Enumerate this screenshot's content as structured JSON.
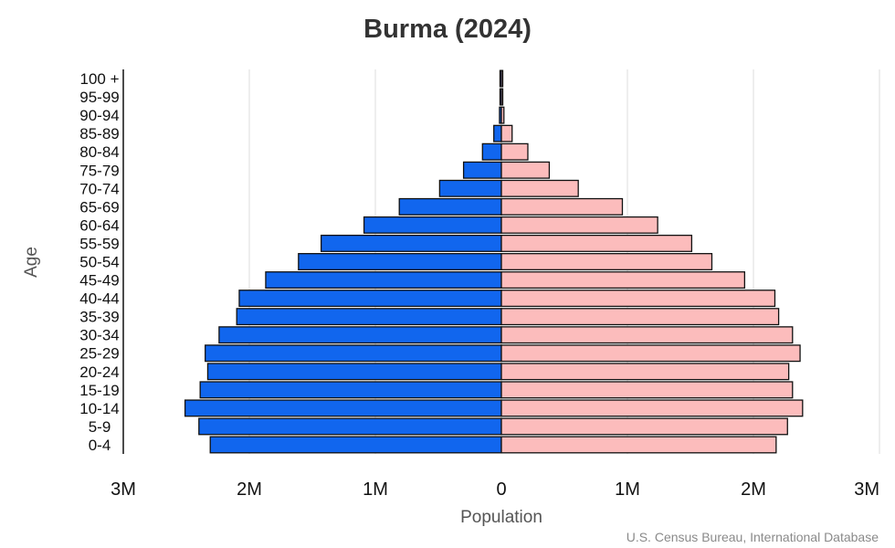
{
  "page": {
    "source": "U.S. Census Bureau, International Database"
  },
  "colors": {
    "male": "#1166ee",
    "female": "#fcbcbc",
    "grid": "#dddddd",
    "bar_outline": "#111111"
  },
  "chart_data": {
    "type": "bar",
    "orientation": "horizontal",
    "subtype": "population-pyramid",
    "title": "Burma (2024)",
    "xlabel": "Population",
    "ylabel": "Age",
    "xlim": [
      -3000000,
      3000000
    ],
    "x_ticks": [
      {
        "value": -3000000,
        "label": "3M"
      },
      {
        "value": -2000000,
        "label": "2M"
      },
      {
        "value": -1000000,
        "label": "1M"
      },
      {
        "value": 0,
        "label": "0"
      },
      {
        "value": 1000000,
        "label": "1M"
      },
      {
        "value": 2000000,
        "label": "2M"
      },
      {
        "value": 3000000,
        "label": "3M"
      }
    ],
    "grid": true,
    "legend": "none",
    "categories": [
      "0-4",
      "5-9",
      "10-14",
      "15-19",
      "20-24",
      "25-29",
      "30-34",
      "35-39",
      "40-44",
      "45-49",
      "50-54",
      "55-59",
      "60-64",
      "65-69",
      "70-74",
      "75-79",
      "80-84",
      "85-89",
      "90-94",
      "95-99",
      "100 +"
    ],
    "series": [
      {
        "side": "left",
        "color": "#1166ee",
        "values": [
          2310000,
          2400000,
          2510000,
          2390000,
          2330000,
          2350000,
          2240000,
          2100000,
          2080000,
          1870000,
          1610000,
          1430000,
          1090000,
          810000,
          490000,
          300000,
          150000,
          60000,
          15000,
          4000,
          1000
        ]
      },
      {
        "side": "right",
        "color": "#fcbcbc",
        "values": [
          2180000,
          2270000,
          2390000,
          2310000,
          2280000,
          2370000,
          2310000,
          2200000,
          2170000,
          1930000,
          1670000,
          1510000,
          1240000,
          960000,
          610000,
          380000,
          210000,
          85000,
          20000,
          6000,
          1500
        ]
      }
    ]
  }
}
